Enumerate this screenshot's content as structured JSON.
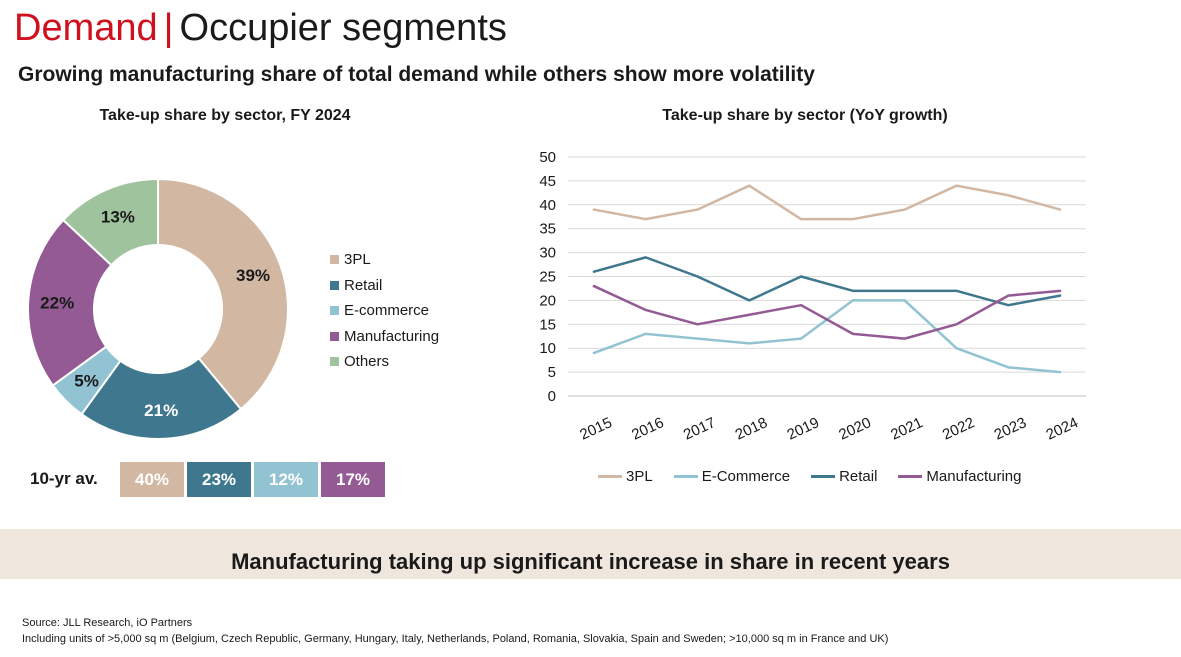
{
  "page": {
    "title_accent": "Demand",
    "title_separator": "|",
    "title_rest": "Occupier segments",
    "subtitle": "Growing manufacturing share of total demand while others show more volatility",
    "banner": "Manufacturing taking up significant increase in share in recent years",
    "source_line1": "Source: JLL Research, iO Partners",
    "source_line2": "Including units of >5,000 sq m (Belgium, Czech Republic, Germany, Hungary, Italy, Netherlands, Poland, Romania, Slovakia, Spain and Sweden; >10,000 sq m in France and UK)"
  },
  "ten_year_avg": {
    "label": "10-yr av.",
    "values": [
      {
        "text": "40%",
        "color": "#d2b8a3"
      },
      {
        "text": "23%",
        "color": "#3f788e"
      },
      {
        "text": "12%",
        "color": "#92c3d3"
      },
      {
        "text": "17%",
        "color": "#945a94"
      }
    ]
  },
  "chart_data": [
    {
      "type": "pie",
      "title": "Take-up share by sector, FY 2024",
      "labels": [
        "3PL",
        "Retail",
        "E-commerce",
        "Manufacturing",
        "Others"
      ],
      "values": [
        39,
        21,
        5,
        22,
        13
      ],
      "value_labels": [
        "39%",
        "21%",
        "5%",
        "22%",
        "13%"
      ],
      "colors": [
        "#d2b8a3",
        "#3f788e",
        "#92c3d3",
        "#945a94",
        "#9fc49d"
      ],
      "donut": true,
      "legend": "right"
    },
    {
      "type": "line",
      "title": "Take-up share by sector (YoY growth)",
      "x": [
        "2015",
        "2016",
        "2017",
        "2018",
        "2019",
        "2020",
        "2021",
        "2022",
        "2023",
        "2024"
      ],
      "ylim": [
        0,
        50
      ],
      "yticks": [
        "0",
        "5",
        "10",
        "15",
        "20",
        "25",
        "30",
        "35",
        "40",
        "45",
        "50"
      ],
      "grid": true,
      "legend": "bottom",
      "series": [
        {
          "name": "3PL",
          "color": "#d2b8a3",
          "values": [
            39,
            37,
            39,
            44,
            37,
            37,
            39,
            44,
            42,
            39
          ]
        },
        {
          "name": "E-Commerce",
          "color": "#92c3d3",
          "values": [
            9,
            13,
            12,
            11,
            12,
            20,
            20,
            10,
            6,
            5
          ]
        },
        {
          "name": "Retail",
          "color": "#3f788e",
          "values": [
            26,
            29,
            25,
            20,
            25,
            22,
            22,
            22,
            19,
            21
          ]
        },
        {
          "name": "Manufacturing",
          "color": "#945a94",
          "values": [
            23,
            18,
            15,
            17,
            19,
            13,
            12,
            15,
            21,
            22
          ]
        }
      ]
    }
  ]
}
